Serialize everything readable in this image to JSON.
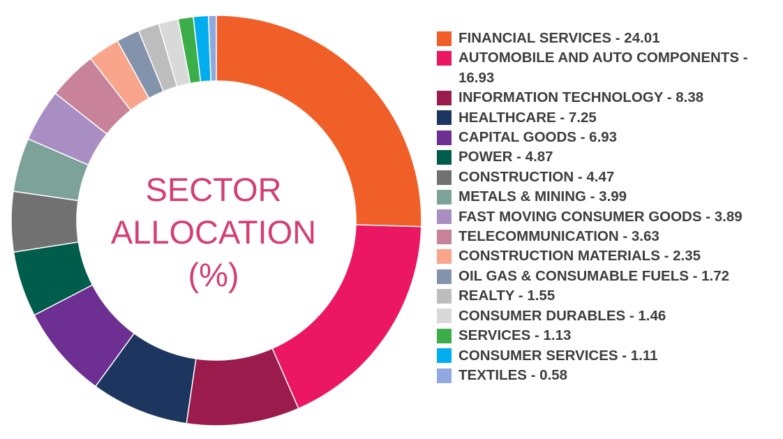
{
  "chart_data": {
    "type": "pie",
    "variant": "donut",
    "title": [
      "SECTOR",
      "ALLOCATION",
      "(%)"
    ],
    "legend_position": "right",
    "slices": [
      {
        "label": "FINANCIAL SERVICES - 24.01",
        "name": "FINANCIAL SERVICES",
        "value": 24.01,
        "color": "#f15f28"
      },
      {
        "label": "AUTOMOBILE AND AUTO COMPONENTS - 16.93",
        "name": "AUTOMOBILE AND AUTO COMPONENTS",
        "value": 16.93,
        "color": "#ec1762"
      },
      {
        "label": "INFORMATION TECHNOLOGY - 8.38",
        "name": "INFORMATION TECHNOLOGY",
        "value": 8.38,
        "color": "#9b1b4d"
      },
      {
        "label": "HEALTHCARE - 7.25",
        "name": "HEALTHCARE",
        "value": 7.25,
        "color": "#1c365f"
      },
      {
        "label": "CAPITAL GOODS - 6.93",
        "name": "CAPITAL GOODS",
        "value": 6.93,
        "color": "#6e2f93"
      },
      {
        "label": "POWER - 4.87",
        "name": "POWER",
        "value": 4.87,
        "color": "#005c4b"
      },
      {
        "label": "CONSTRUCTION - 4.47",
        "name": "CONSTRUCTION",
        "value": 4.47,
        "color": "#717171"
      },
      {
        "label": "METALS & MINING - 3.99",
        "name": "METALS & MINING",
        "value": 3.99,
        "color": "#7da29a"
      },
      {
        "label": "FAST MOVING CONSUMER GOODS - 3.89",
        "name": "FAST MOVING CONSUMER GOODS",
        "value": 3.89,
        "color": "#a98ec3"
      },
      {
        "label": "TELECOMMUNICATION - 3.63",
        "name": "TELECOMMUNICATION",
        "value": 3.63,
        "color": "#c8839a"
      },
      {
        "label": "CONSTRUCTION MATERIALS - 2.35",
        "name": "CONSTRUCTION MATERIALS",
        "value": 2.35,
        "color": "#f8a58c"
      },
      {
        "label": "OIL GAS & CONSUMABLE FUELS - 1.72",
        "name": "OIL GAS & CONSUMABLE FUELS",
        "value": 1.72,
        "color": "#8393ab"
      },
      {
        "label": "REALTY - 1.55",
        "name": "REALTY",
        "value": 1.55,
        "color": "#bdbdbd"
      },
      {
        "label": "CONSUMER DURABLES  - 1.46",
        "name": "CONSUMER DURABLES",
        "value": 1.46,
        "color": "#d9d9d9"
      },
      {
        "label": "SERVICES  - 1.13",
        "name": "SERVICES",
        "value": 1.13,
        "color": "#3cae49"
      },
      {
        "label": "CONSUMER SERVICES  - 1.11",
        "name": "CONSUMER SERVICES",
        "value": 1.11,
        "color": "#00adef"
      },
      {
        "label": "TEXTILES  - 0.58",
        "name": "TEXTILES",
        "value": 0.58,
        "color": "#8fa9e0"
      }
    ],
    "title_color": "#d43e74"
  }
}
